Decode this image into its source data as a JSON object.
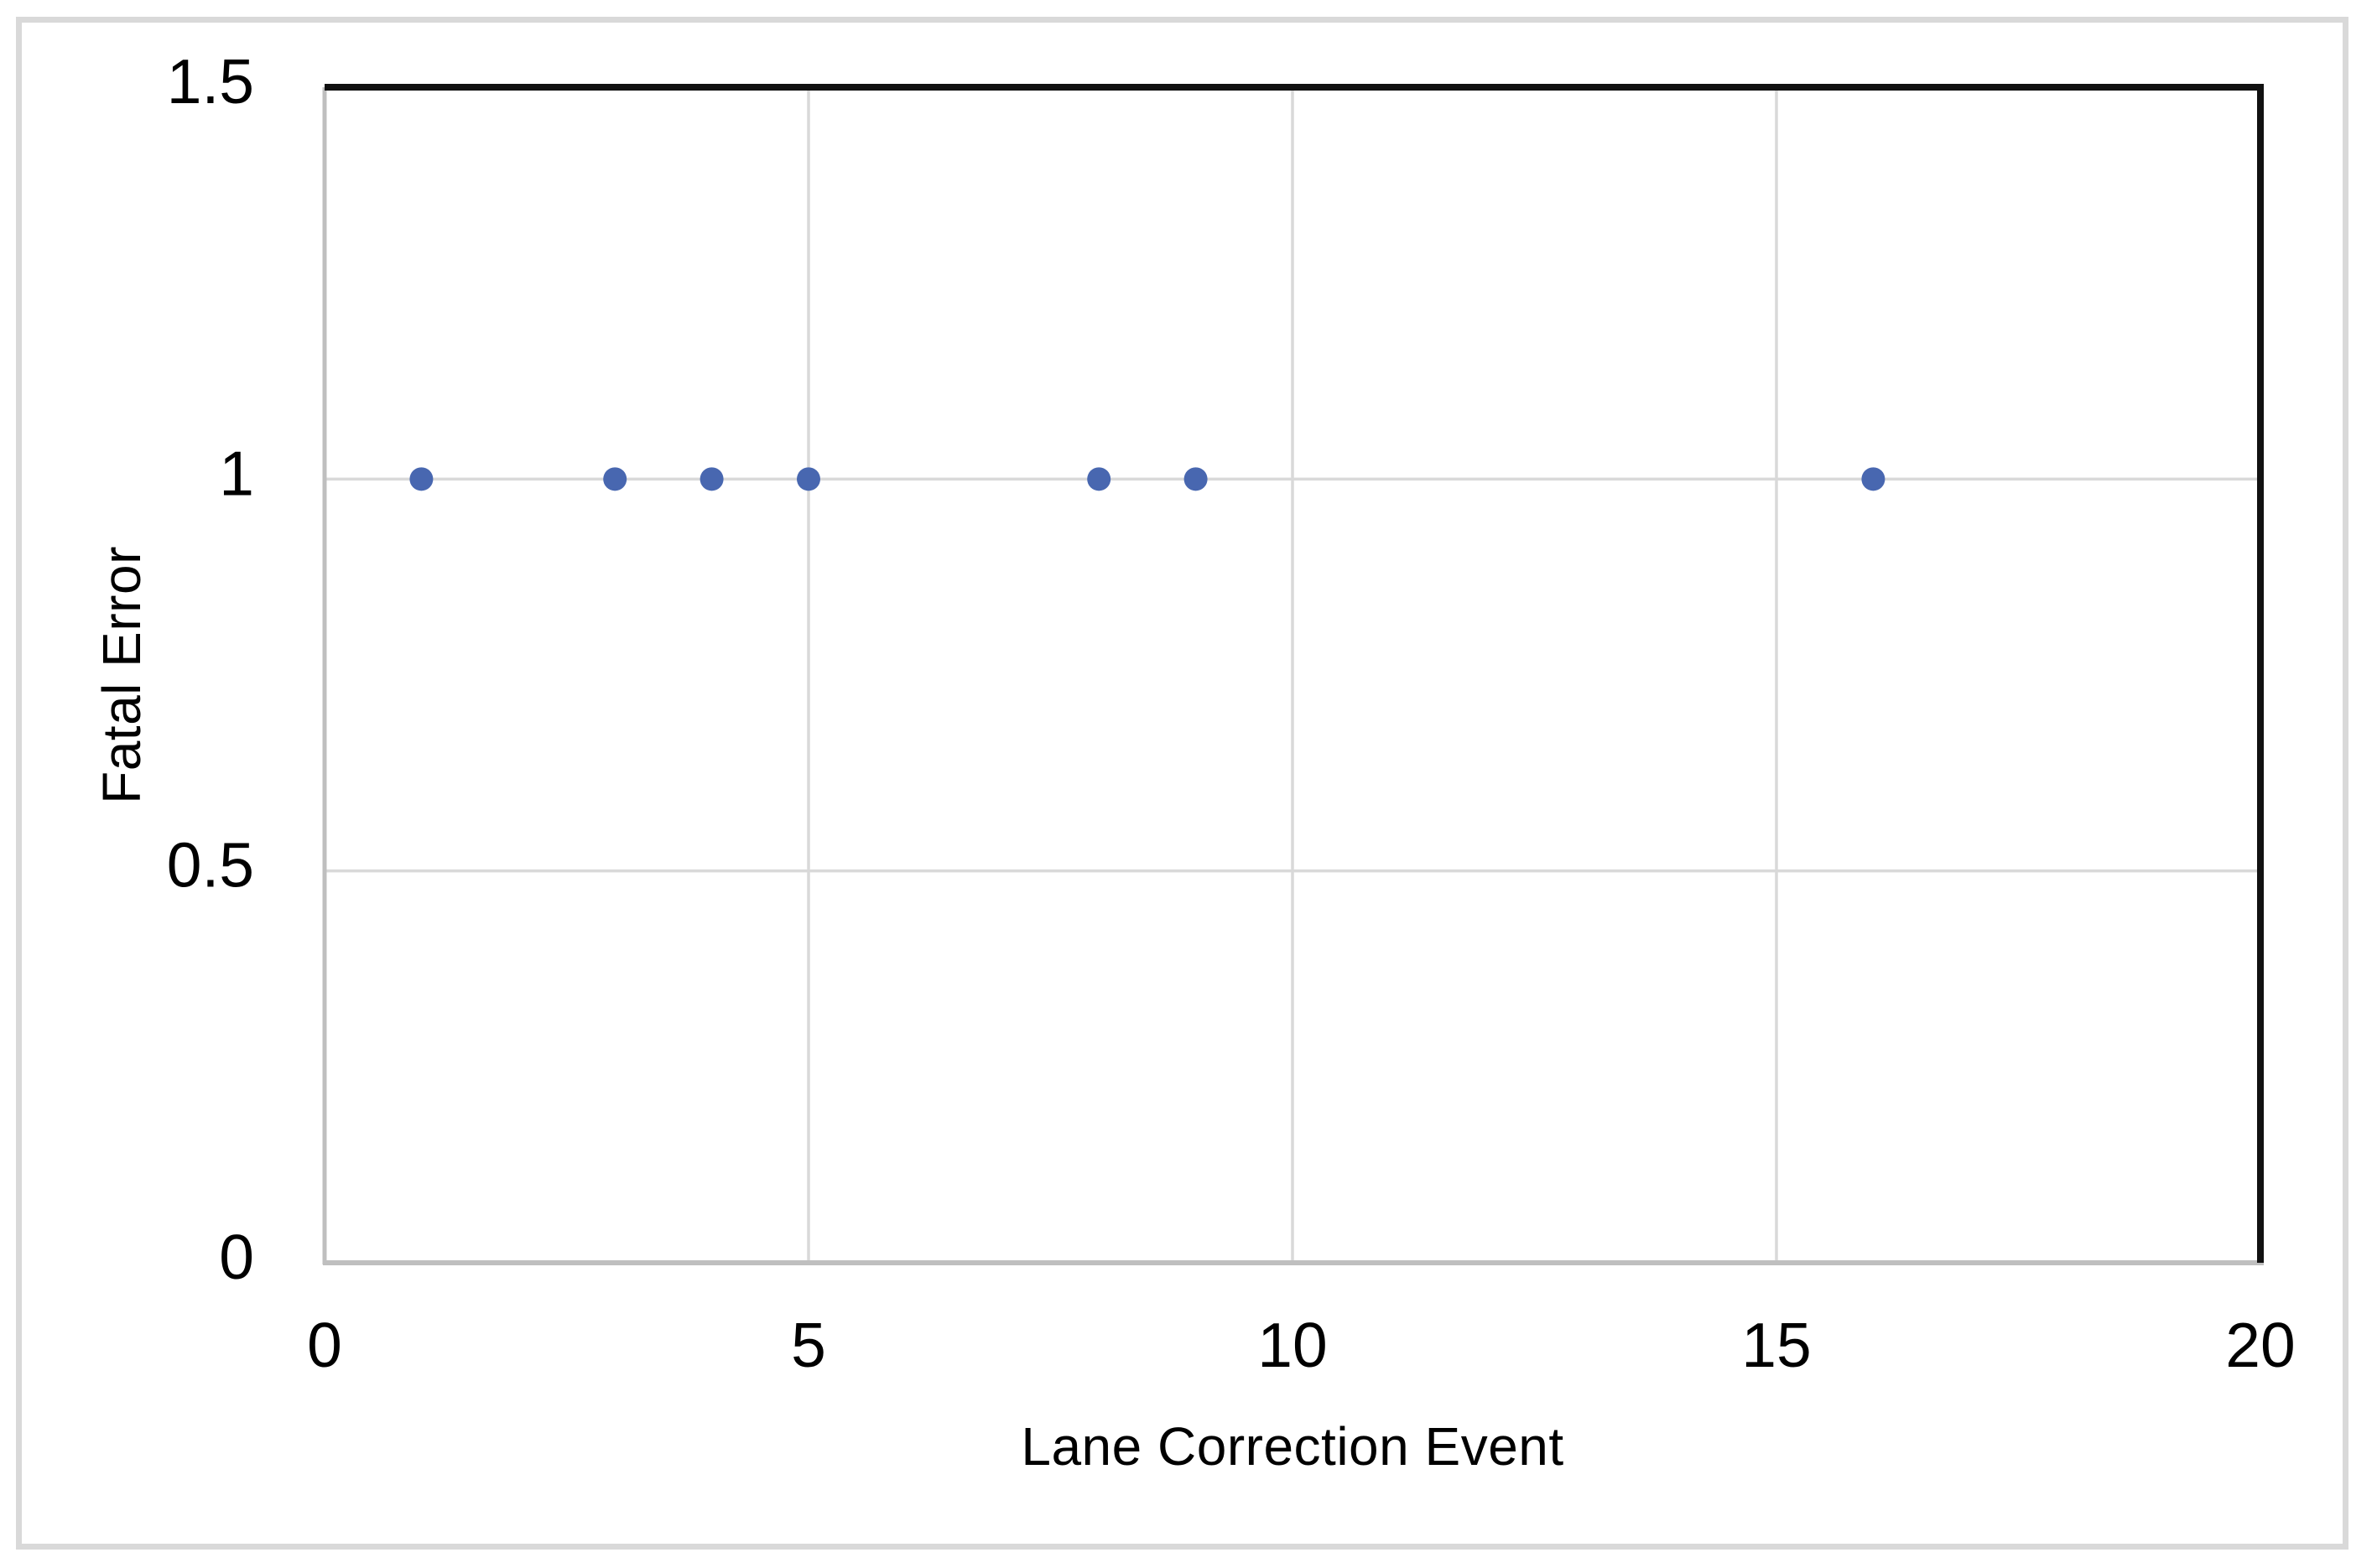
{
  "chart_data": {
    "type": "scatter",
    "title": "",
    "xlabel": "Lane Correction Event",
    "ylabel": "Fatal Error",
    "x": [
      1,
      3,
      4,
      5,
      8,
      9,
      16
    ],
    "y": [
      1,
      1,
      1,
      1,
      1,
      1,
      1
    ],
    "xlim": [
      0,
      20
    ],
    "ylim": [
      0,
      1.5
    ],
    "x_tick_values": [
      0,
      5,
      10,
      15,
      20
    ],
    "x_tick_labels": [
      "0",
      "5",
      "10",
      "15",
      "20"
    ],
    "y_tick_values": [
      0,
      0.5,
      1,
      1.5
    ],
    "y_tick_labels": [
      "0",
      "0.5",
      "1",
      "1.5"
    ],
    "grid": true,
    "legend": "none",
    "marker": "circle",
    "colors": {
      "point": "#4867B0",
      "gridline": "#d9d9d9",
      "axis_line": "#bfbfbf",
      "plot_border": "#111111",
      "frame": "#d9d9d9",
      "text": "#000000"
    }
  }
}
